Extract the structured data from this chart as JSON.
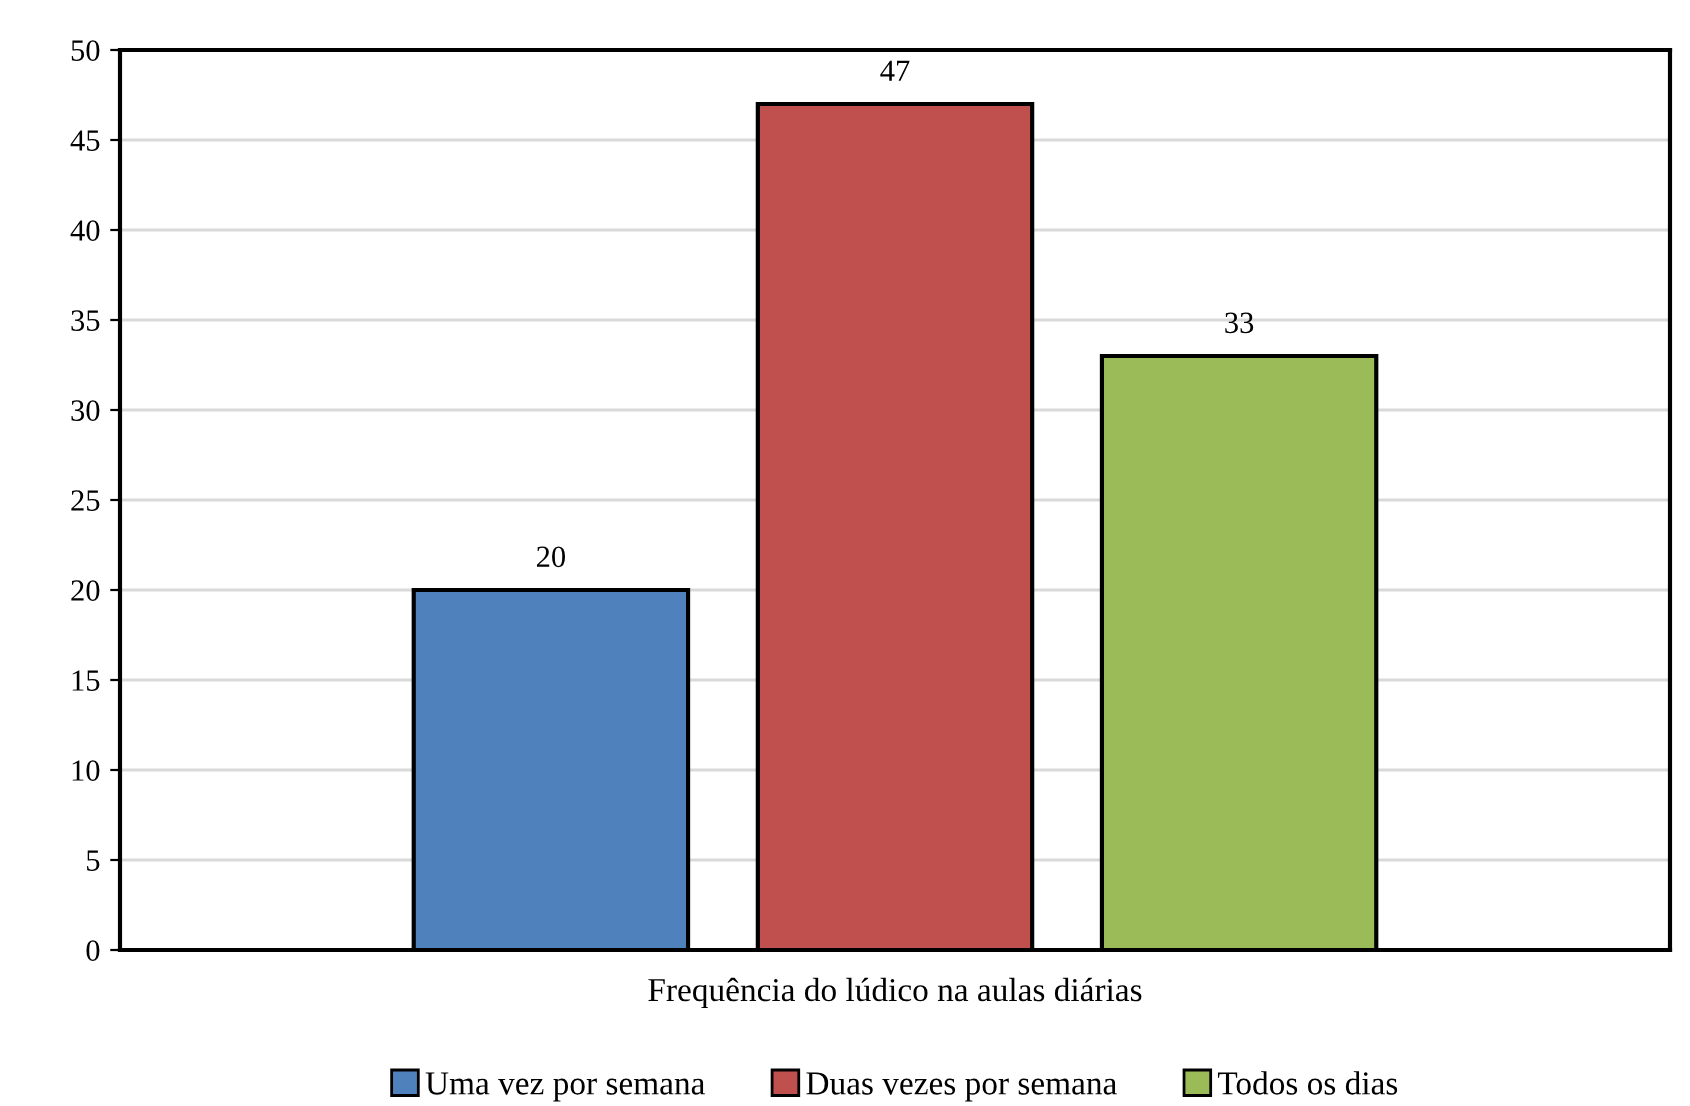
{
  "chart_data": {
    "type": "bar",
    "categories": [
      "Frequência do lúdico na aulas diárias"
    ],
    "series": [
      {
        "name": "Uma vez por semana",
        "color": "#4f81bd",
        "values": [
          20
        ]
      },
      {
        "name": "Duas vezes por semana",
        "color": "#c0504d",
        "values": [
          47
        ]
      },
      {
        "name": "Todos os dias",
        "color": "#9bbb59",
        "values": [
          33
        ]
      }
    ],
    "ylim": [
      0,
      50
    ],
    "yticks": [
      0,
      5,
      10,
      15,
      20,
      25,
      30,
      35,
      40,
      45,
      50
    ],
    "grid": "y",
    "legend": "bottom",
    "data_labels": true
  }
}
